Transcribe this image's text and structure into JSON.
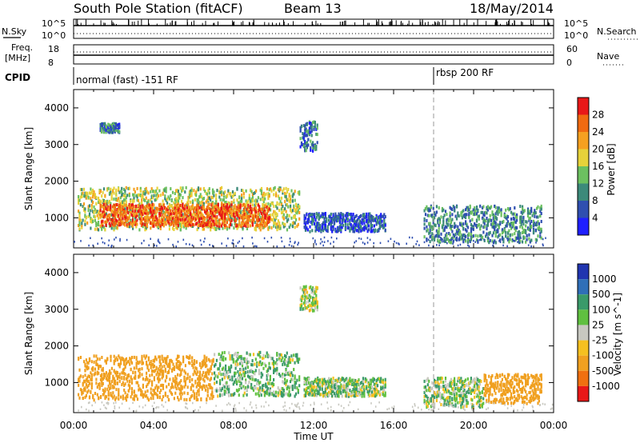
{
  "header": {
    "station": "South Pole Station (fitACF)",
    "beam": "Beam 13",
    "date": "18/May/2014"
  },
  "top_panels": {
    "nsky_label": "N.Sky",
    "nsky_ticks": [
      "10^5",
      "10^0"
    ],
    "nsearch_label": "N.Search",
    "nsearch_ticks": [
      "10^5",
      "10^0"
    ],
    "freq_label_1": "Freq.",
    "freq_label_2": "[MHz]",
    "freq_ticks": [
      "18",
      "8"
    ],
    "nave_label": "Nave",
    "nave_ticks": [
      "60",
      "0"
    ],
    "cpid_label": "CPID",
    "cpid_segments": [
      {
        "label": "normal (fast) -151 RF",
        "start_hour": 0
      },
      {
        "label": "rbsp 200 RF",
        "start_hour": 18
      }
    ]
  },
  "chart_data": [
    {
      "type": "heatmap",
      "name": "power",
      "ylabel": "Slant Range [km]",
      "xlabel": "",
      "xlim": [
        0,
        24
      ],
      "ylim": [
        180,
        4500
      ],
      "yticks": [
        "1000",
        "2000",
        "3000",
        "4000"
      ],
      "colorbar_label": "Power [dB]",
      "colorbar_ticks": [
        "4",
        "8",
        "12",
        "16",
        "20",
        "24",
        "28"
      ],
      "colorbar_colors": [
        "#1f1fff",
        "#2f4fb0",
        "#3c8a7a",
        "#6cc060",
        "#e6d23a",
        "#f5a020",
        "#f06a10",
        "#e81818"
      ],
      "blobs": [
        {
          "t0": 0.2,
          "t1": 11.3,
          "r0": 650,
          "r1": 1800,
          "level": 16
        },
        {
          "t0": 1.3,
          "t1": 9.8,
          "r0": 750,
          "r1": 1350,
          "level": 26
        },
        {
          "t0": 11.3,
          "t1": 12.2,
          "r0": 2800,
          "r1": 3600,
          "level": 8
        },
        {
          "t0": 11.5,
          "t1": 15.6,
          "r0": 600,
          "r1": 1100,
          "level": 6
        },
        {
          "t0": 17.5,
          "t1": 23.4,
          "r0": 300,
          "r1": 1300,
          "level": 10
        },
        {
          "t0": 1.3,
          "t1": 2.3,
          "r0": 3300,
          "r1": 3550,
          "level": 8
        }
      ]
    },
    {
      "type": "heatmap",
      "name": "velocity",
      "ylabel": "Slant Range [km]",
      "xlabel": "Time UT",
      "xlim": [
        0,
        24
      ],
      "ylim": [
        180,
        4500
      ],
      "yticks": [
        "1000",
        "2000",
        "3000",
        "4000"
      ],
      "xticks": [
        "00:00",
        "04:00",
        "08:00",
        "12:00",
        "16:00",
        "20:00",
        "00:00"
      ],
      "colorbar_label": "Velocity [m s^-1]",
      "colorbar_ticks": [
        "1000",
        "500",
        "100",
        "25",
        "-25",
        "-100",
        "-500",
        "-1000"
      ],
      "colorbar_colors": [
        "#2035b0",
        "#2f6fb8",
        "#3a9a6a",
        "#60c040",
        "#c8c8c0",
        "#f5c020",
        "#f0a020",
        "#f07010",
        "#e81818"
      ],
      "blobs": [
        {
          "t0": 0.2,
          "t1": 7.0,
          "r0": 500,
          "r1": 1700,
          "level": -300
        },
        {
          "t0": 7.0,
          "t1": 11.3,
          "r0": 600,
          "r1": 1800,
          "level": 80
        },
        {
          "t0": 11.3,
          "t1": 12.2,
          "r0": 2900,
          "r1": 3600,
          "level": 10
        },
        {
          "t0": 11.5,
          "t1": 15.6,
          "r0": 600,
          "r1": 1100,
          "level": 60
        },
        {
          "t0": 17.5,
          "t1": 20.5,
          "r0": 300,
          "r1": 1100,
          "level": 60
        },
        {
          "t0": 20.5,
          "t1": 23.4,
          "r0": 400,
          "r1": 1200,
          "level": -300
        }
      ]
    }
  ]
}
